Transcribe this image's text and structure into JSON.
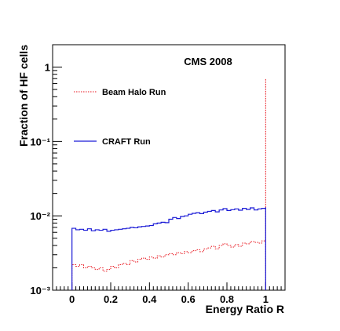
{
  "chart_data": {
    "type": "line",
    "title": "CMS 2008",
    "xlabel": "Energy Ratio R",
    "ylabel": "Fraction of HF cells",
    "xlim": [
      -0.1,
      1.1
    ],
    "ylim": [
      0.001,
      2
    ],
    "y_scale": "log",
    "x_ticks": [
      "0",
      "0.2",
      "0.4",
      "0.6",
      "0.8",
      "1"
    ],
    "x_tick_values": [
      0,
      0.2,
      0.4,
      0.6,
      0.8,
      1
    ],
    "y_ticks": [
      "1",
      "10⁻¹",
      "10⁻²",
      "10⁻³"
    ],
    "y_tick_values": [
      1,
      0.1,
      0.01,
      0.001
    ],
    "grid": false,
    "legend_position": "top-left",
    "bin_width": 0.02,
    "series": [
      {
        "name": "Beam Halo Run",
        "color": "#e8141c",
        "style": "dotted",
        "x": [
          0.0,
          0.02,
          0.04,
          0.06,
          0.08,
          0.1,
          0.12,
          0.14,
          0.16,
          0.18,
          0.2,
          0.22,
          0.24,
          0.26,
          0.28,
          0.3,
          0.32,
          0.34,
          0.36,
          0.38,
          0.4,
          0.42,
          0.44,
          0.46,
          0.48,
          0.5,
          0.52,
          0.54,
          0.56,
          0.58,
          0.6,
          0.62,
          0.64,
          0.66,
          0.68,
          0.7,
          0.72,
          0.74,
          0.76,
          0.78,
          0.8,
          0.82,
          0.84,
          0.86,
          0.88,
          0.9,
          0.92,
          0.94,
          0.96,
          0.98
        ],
        "values": [
          0.0022,
          0.0021,
          0.0022,
          0.002,
          0.0021,
          0.002,
          0.0019,
          0.002,
          0.0018,
          0.0019,
          0.0021,
          0.002,
          0.0022,
          0.0023,
          0.0022,
          0.0025,
          0.0024,
          0.0026,
          0.0027,
          0.0026,
          0.0028,
          0.0027,
          0.0029,
          0.0028,
          0.003,
          0.0031,
          0.003,
          0.0032,
          0.0031,
          0.0033,
          0.0032,
          0.0034,
          0.0035,
          0.0033,
          0.0036,
          0.0037,
          0.0039,
          0.0036,
          0.004,
          0.0042,
          0.004,
          0.0038,
          0.0041,
          0.0039,
          0.0043,
          0.0042,
          0.0045,
          0.0044,
          0.0043,
          0.0046
        ],
        "last_bin_value": 0.7
      },
      {
        "name": "CRAFT Run",
        "color": "#1a1ad6",
        "style": "solid",
        "x": [
          0.0,
          0.02,
          0.04,
          0.06,
          0.08,
          0.1,
          0.12,
          0.14,
          0.16,
          0.18,
          0.2,
          0.22,
          0.24,
          0.26,
          0.28,
          0.3,
          0.32,
          0.34,
          0.36,
          0.38,
          0.4,
          0.42,
          0.44,
          0.46,
          0.48,
          0.5,
          0.52,
          0.54,
          0.56,
          0.58,
          0.6,
          0.62,
          0.64,
          0.66,
          0.68,
          0.7,
          0.72,
          0.74,
          0.76,
          0.78,
          0.8,
          0.82,
          0.84,
          0.86,
          0.88,
          0.9,
          0.92,
          0.94,
          0.96,
          0.98
        ],
        "values": [
          0.0068,
          0.0065,
          0.0066,
          0.0064,
          0.0067,
          0.0063,
          0.0065,
          0.0064,
          0.0066,
          0.0062,
          0.0064,
          0.0065,
          0.0066,
          0.0067,
          0.0068,
          0.007,
          0.0069,
          0.0071,
          0.0072,
          0.0073,
          0.0074,
          0.0078,
          0.008,
          0.0082,
          0.0081,
          0.009,
          0.0095,
          0.0092,
          0.0098,
          0.01,
          0.0105,
          0.0108,
          0.011,
          0.0107,
          0.0112,
          0.0115,
          0.0118,
          0.0113,
          0.012,
          0.0125,
          0.0118,
          0.0121,
          0.0124,
          0.0119,
          0.0126,
          0.0122,
          0.0128,
          0.012,
          0.0124,
          0.0126
        ],
        "last_bin_value": 0.013
      }
    ]
  }
}
